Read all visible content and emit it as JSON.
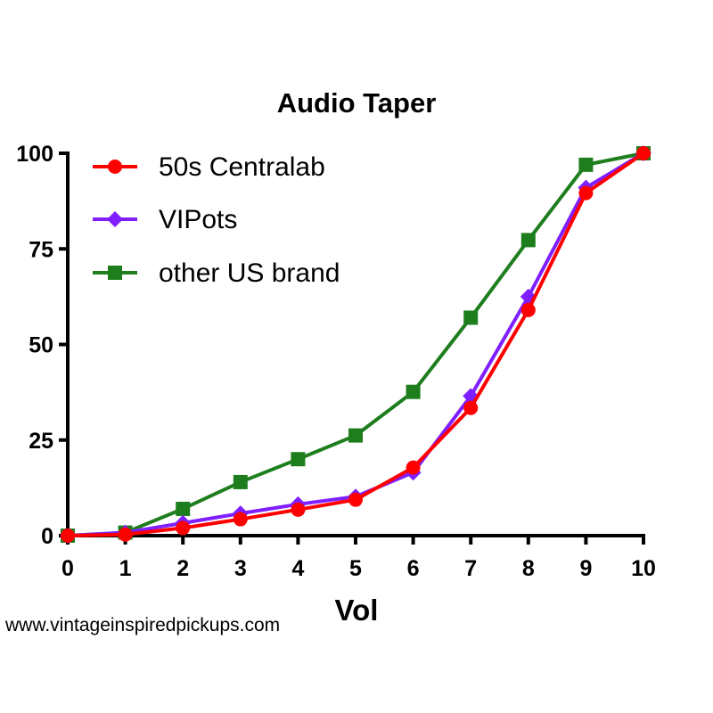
{
  "chart_data": {
    "type": "line",
    "title": "Audio Taper",
    "xlabel": "Vol",
    "ylabel": "",
    "x": [
      0,
      1,
      2,
      3,
      4,
      5,
      6,
      7,
      8,
      9,
      10
    ],
    "xlim": [
      0,
      10
    ],
    "ylim": [
      0,
      100
    ],
    "xticks": [
      0,
      1,
      2,
      3,
      4,
      5,
      6,
      7,
      8,
      9,
      10
    ],
    "yticks": [
      0,
      25,
      50,
      75,
      100
    ],
    "grid": false,
    "legend_position": "top-left",
    "series": [
      {
        "name": "50s Centralab",
        "color": "#ff0000",
        "marker": "circle",
        "values": [
          0,
          0.3,
          2,
          4.3,
          6.8,
          9.4,
          17.8,
          33.4,
          59,
          89.6,
          100
        ]
      },
      {
        "name": "VIPots",
        "color": "#7f1fff",
        "marker": "diamond",
        "values": [
          0,
          0.8,
          3.3,
          5.8,
          8.2,
          10.2,
          16.5,
          36.5,
          62.5,
          91,
          100
        ]
      },
      {
        "name": "other US brand",
        "color": "#1e7e1e",
        "marker": "square",
        "values": [
          0,
          0.8,
          7,
          14,
          20,
          26.2,
          37.6,
          57,
          77.3,
          97,
          100
        ]
      }
    ]
  },
  "footer": {
    "watermark": "www.vintageinspiredpickups.com"
  }
}
